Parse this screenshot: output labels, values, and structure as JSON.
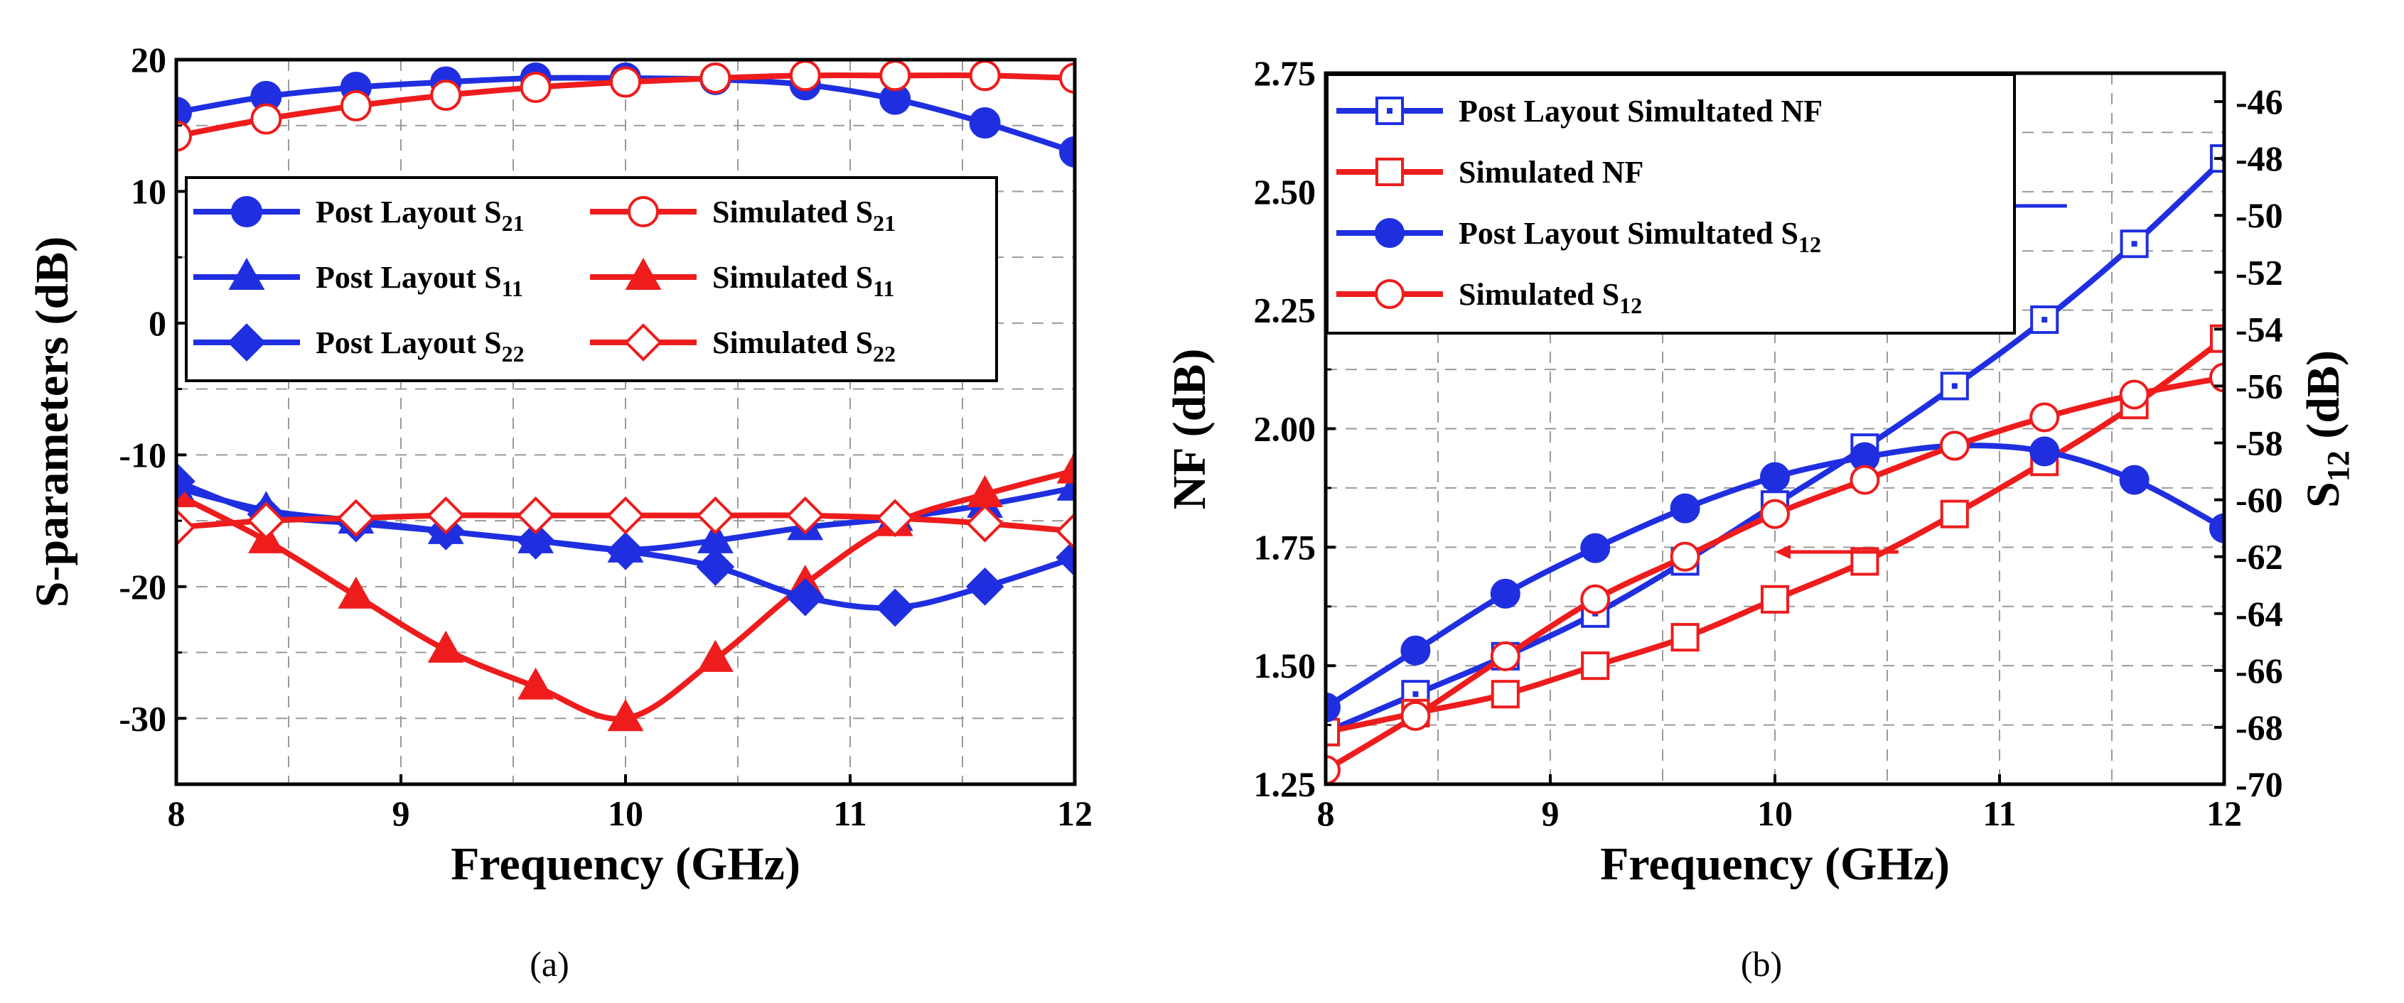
{
  "chart_data": [
    {
      "type": "line",
      "caption": "(a)",
      "xlabel": "Frequency (GHz)",
      "ylabel": "S-parameters (dB)",
      "xlim": [
        8,
        12
      ],
      "ylim": [
        -35,
        20
      ],
      "xticks": [
        8,
        9,
        10,
        11,
        12
      ],
      "yticks": [
        -30,
        -20,
        -10,
        0,
        10,
        20
      ],
      "grid": true,
      "legend_position": "middle",
      "x": [
        8.0,
        8.4,
        8.8,
        9.2,
        9.6,
        10.0,
        10.4,
        10.8,
        11.2,
        11.6,
        12.0
      ],
      "series": [
        {
          "name": "Post Layout S21",
          "base": "Post Layout S",
          "sub": "21",
          "color": "#1f2fe0",
          "marker": "circle",
          "fill": true,
          "values": [
            16.0,
            17.2,
            17.9,
            18.3,
            18.6,
            18.6,
            18.5,
            18.1,
            17.0,
            15.2,
            13.0
          ]
        },
        {
          "name": "Simulated  S21",
          "base": "Simulated  S",
          "sub": "21",
          "color": "#ee1c1c",
          "marker": "circle",
          "fill": false,
          "values": [
            14.2,
            15.5,
            16.5,
            17.3,
            17.9,
            18.3,
            18.6,
            18.8,
            18.8,
            18.8,
            18.6
          ]
        },
        {
          "name": "Post Layout S11",
          "base": "Post Layout S",
          "sub": "11",
          "color": "#1f2fe0",
          "marker": "triangle",
          "fill": true,
          "values": [
            -12.5,
            -14.2,
            -15.0,
            -15.8,
            -16.5,
            -17.2,
            -16.5,
            -15.5,
            -14.8,
            -13.8,
            -12.5
          ]
        },
        {
          "name": "Simulated  S11",
          "base": "Simulated  S",
          "sub": "11",
          "color": "#ee1c1c",
          "marker": "triangle",
          "fill": true,
          "values": [
            -13.0,
            -16.5,
            -20.7,
            -24.8,
            -27.6,
            -30.0,
            -25.5,
            -19.8,
            -15.2,
            -13.0,
            -11.2
          ]
        },
        {
          "name": "Post Layout S22",
          "base": "Post Layout S",
          "sub": "22",
          "color": "#1f2fe0",
          "marker": "diamond",
          "fill": true,
          "values": [
            -12.0,
            -14.5,
            -15.2,
            -15.8,
            -16.5,
            -17.3,
            -18.5,
            -20.8,
            -21.6,
            -20.0,
            -17.8
          ]
        },
        {
          "name": "Simulated  S22",
          "base": "Simulated  S",
          "sub": "22",
          "color": "#ee1c1c",
          "marker": "diamond",
          "fill": false,
          "values": [
            -15.5,
            -15.0,
            -14.8,
            -14.6,
            -14.6,
            -14.6,
            -14.6,
            -14.6,
            -14.8,
            -15.2,
            -15.8
          ]
        }
      ]
    },
    {
      "type": "line",
      "caption": "(b)",
      "xlabel": "Frequency (GHz)",
      "ylabel": "NF (dB)",
      "y2label_base": "S",
      "y2label_sub": "12",
      "y2label_unit": " (dB)",
      "xlim": [
        8,
        12
      ],
      "ylim": [
        1.25,
        2.75
      ],
      "y2lim": [
        -70,
        -45
      ],
      "xticks": [
        8,
        9,
        10,
        11,
        12
      ],
      "yticks": [
        1.25,
        1.5,
        1.75,
        2.0,
        2.25,
        2.5,
        2.75
      ],
      "ytick_labels": [
        "1.25",
        "1.50",
        "1.75",
        "2.00",
        "2.25",
        "2.50",
        "2.75"
      ],
      "y2ticks": [
        -70,
        -68,
        -66,
        -64,
        -62,
        -60,
        -58,
        -56,
        -54,
        -52,
        -50,
        -48,
        -46
      ],
      "grid": true,
      "legend_position": "top-left",
      "x": [
        8.0,
        8.4,
        8.8,
        9.2,
        9.6,
        10.0,
        10.4,
        10.8,
        11.2,
        11.6,
        12.0
      ],
      "series": [
        {
          "name": "Post Layout Simultated NF",
          "base": "Post Layout Simultated NF",
          "sub": "",
          "color": "#1f2fe0",
          "marker": "square-dot",
          "fill": false,
          "axis": "left",
          "values": [
            1.36,
            1.44,
            1.52,
            1.61,
            1.72,
            1.84,
            1.96,
            2.09,
            2.23,
            2.39,
            2.57
          ]
        },
        {
          "name": "Simulated NF",
          "base": "Simulated NF",
          "sub": "",
          "color": "#ee1c1c",
          "marker": "square",
          "fill": false,
          "axis": "left",
          "values": [
            1.36,
            1.4,
            1.44,
            1.5,
            1.56,
            1.64,
            1.72,
            1.82,
            1.93,
            2.05,
            2.19
          ]
        },
        {
          "name": "Post Layout Simultated S12",
          "base": "Post Layout Simultated S",
          "sub": "12",
          "color": "#1f2fe0",
          "marker": "circle",
          "fill": true,
          "axis": "right",
          "values": [
            -67.3,
            -65.3,
            -63.3,
            -61.7,
            -60.3,
            -59.2,
            -58.5,
            -58.1,
            -58.3,
            -59.3,
            -61.0
          ]
        },
        {
          "name": "Simulated S12",
          "base": "Simulated S",
          "sub": "12",
          "color": "#ee1c1c",
          "marker": "circle",
          "fill": false,
          "axis": "right",
          "values": [
            -69.5,
            -67.6,
            -65.5,
            -63.5,
            -62.0,
            -60.5,
            -59.3,
            -58.1,
            -57.1,
            -56.3,
            -55.7
          ]
        }
      ],
      "annotations": [
        {
          "type": "arrow",
          "target_axis": "right",
          "from": [
            11.3,
            2.47
          ],
          "to": [
            10.95,
            2.47
          ]
        },
        {
          "type": "arrow",
          "target_axis": "left",
          "from": [
            10.55,
            1.74
          ],
          "to": [
            10.0,
            1.74
          ]
        }
      ]
    }
  ]
}
